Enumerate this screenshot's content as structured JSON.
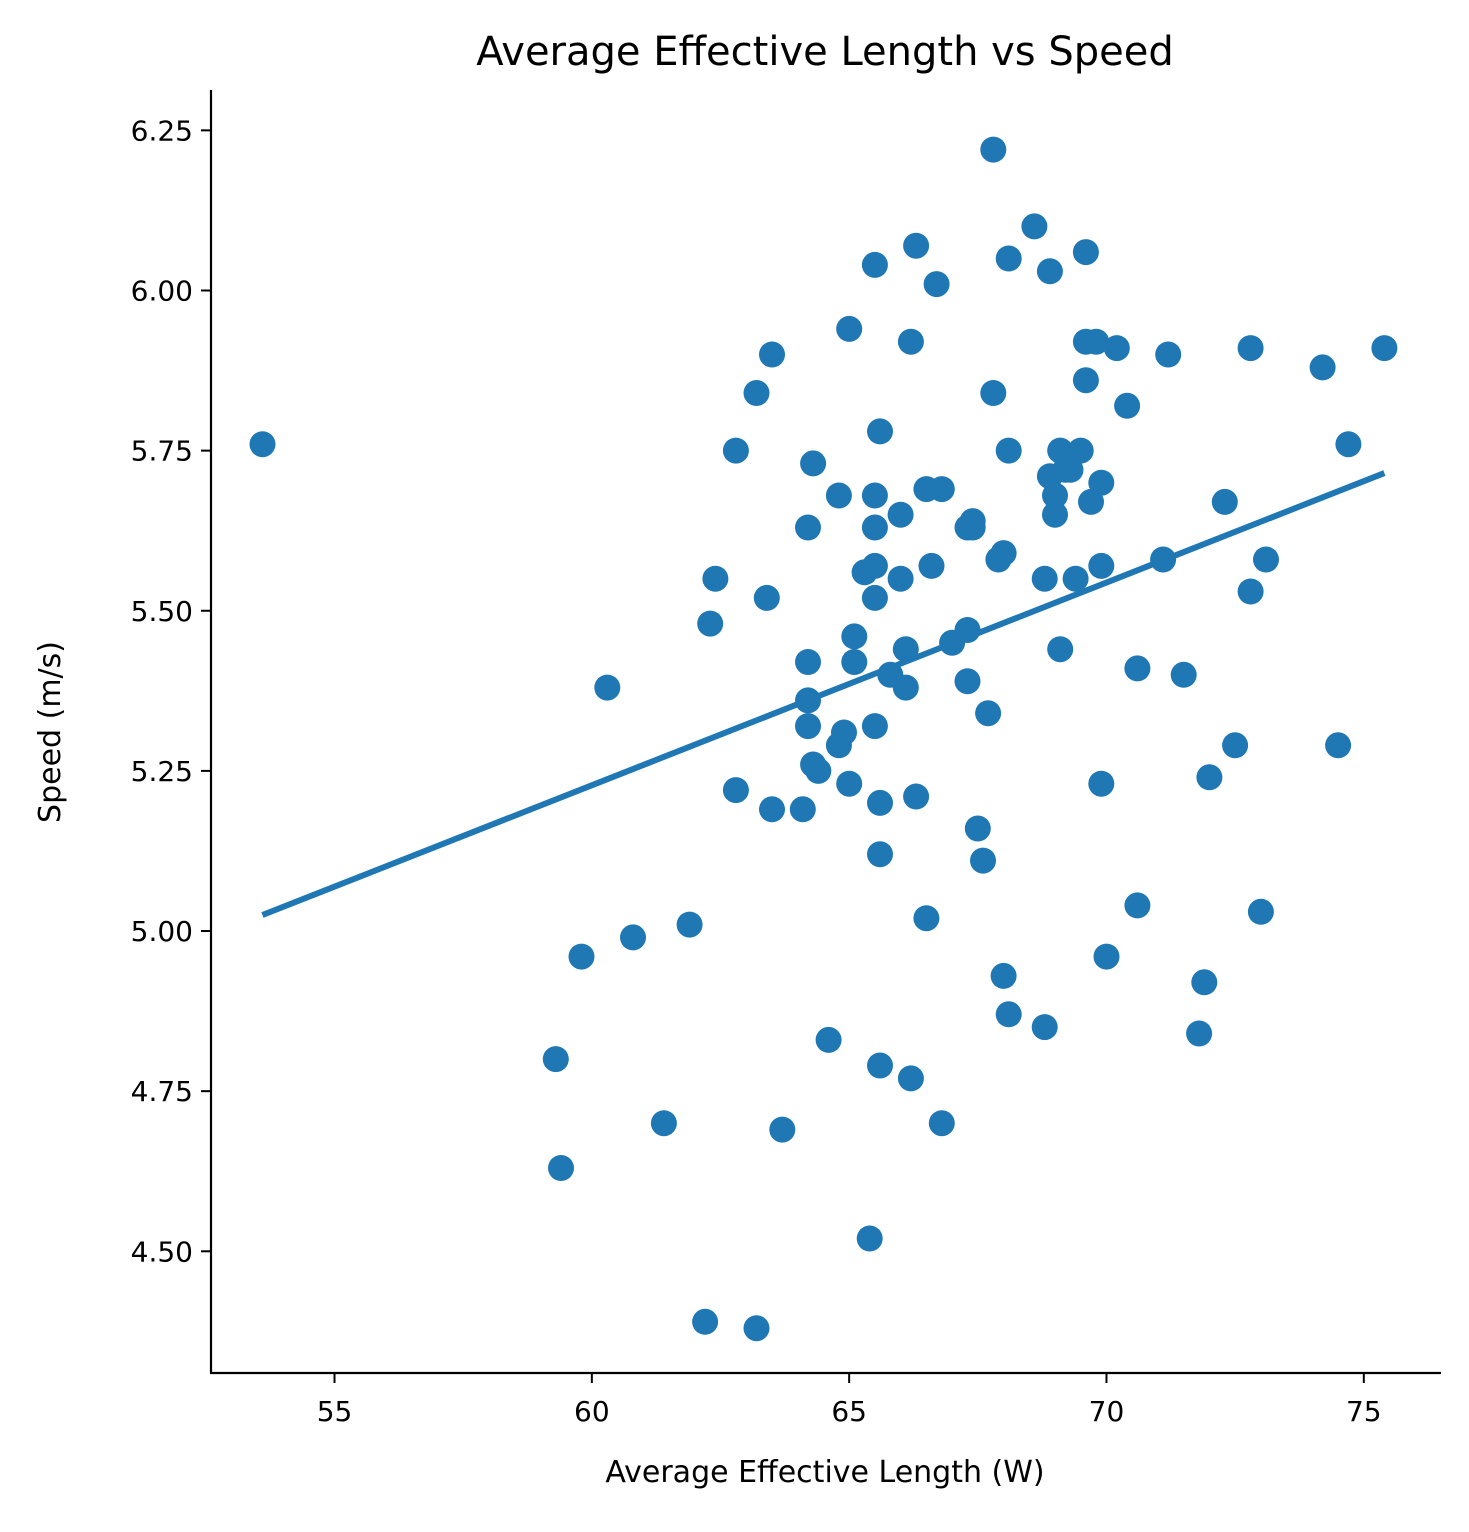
{
  "chart_data": {
    "type": "scatter",
    "title": "Average Effective Length vs Speed",
    "xlabel": "Average Effective Length (W)",
    "ylabel": "Speed (m/s)",
    "xlim": [
      52.6,
      76.5
    ],
    "ylim": [
      4.31,
      6.313
    ],
    "xticks": [
      55,
      60,
      65,
      70,
      75
    ],
    "xtick_labels": [
      "55",
      "60",
      "65",
      "70",
      "75"
    ],
    "yticks": [
      4.5,
      4.75,
      5.0,
      5.25,
      5.5,
      5.75,
      6.0,
      6.25
    ],
    "ytick_labels": [
      "4.50",
      "4.75",
      "5.00",
      "5.25",
      "5.50",
      "5.75",
      "6.00",
      "6.25"
    ],
    "grid": false,
    "color": "#1f77b4",
    "series": [
      {
        "type": "scatter",
        "points": [
          [
            53.6,
            5.76
          ],
          [
            59.3,
            4.8
          ],
          [
            59.4,
            4.63
          ],
          [
            59.8,
            4.96
          ],
          [
            60.3,
            5.38
          ],
          [
            60.8,
            4.99
          ],
          [
            61.4,
            4.7
          ],
          [
            61.9,
            5.01
          ],
          [
            62.2,
            4.39
          ],
          [
            62.3,
            5.48
          ],
          [
            62.4,
            5.55
          ],
          [
            62.8,
            5.75
          ],
          [
            62.8,
            5.22
          ],
          [
            63.2,
            5.84
          ],
          [
            63.2,
            4.38
          ],
          [
            63.4,
            5.52
          ],
          [
            63.5,
            5.9
          ],
          [
            63.5,
            5.19
          ],
          [
            63.7,
            4.69
          ],
          [
            64.1,
            5.19
          ],
          [
            64.2,
            5.63
          ],
          [
            64.2,
            5.42
          ],
          [
            64.2,
            5.36
          ],
          [
            64.2,
            5.32
          ],
          [
            64.3,
            5.73
          ],
          [
            64.3,
            5.26
          ],
          [
            64.4,
            5.25
          ],
          [
            64.6,
            4.83
          ],
          [
            64.8,
            5.68
          ],
          [
            64.8,
            5.29
          ],
          [
            64.9,
            5.31
          ],
          [
            65.0,
            5.94
          ],
          [
            65.0,
            5.23
          ],
          [
            65.1,
            5.46
          ],
          [
            65.1,
            5.42
          ],
          [
            65.3,
            5.56
          ],
          [
            65.4,
            4.52
          ],
          [
            65.5,
            6.04
          ],
          [
            65.5,
            5.68
          ],
          [
            65.5,
            5.63
          ],
          [
            65.5,
            5.57
          ],
          [
            65.5,
            5.52
          ],
          [
            65.5,
            5.32
          ],
          [
            65.6,
            5.78
          ],
          [
            65.6,
            5.2
          ],
          [
            65.6,
            5.12
          ],
          [
            65.6,
            4.79
          ],
          [
            65.8,
            5.4
          ],
          [
            66.0,
            5.65
          ],
          [
            66.0,
            5.55
          ],
          [
            66.1,
            5.38
          ],
          [
            66.1,
            5.44
          ],
          [
            66.2,
            5.92
          ],
          [
            66.2,
            4.77
          ],
          [
            66.3,
            5.21
          ],
          [
            66.3,
            6.07
          ],
          [
            66.5,
            5.69
          ],
          [
            66.5,
            5.02
          ],
          [
            66.6,
            5.57
          ],
          [
            66.7,
            6.01
          ],
          [
            66.8,
            5.69
          ],
          [
            66.8,
            4.7
          ],
          [
            67.0,
            5.45
          ],
          [
            67.3,
            5.63
          ],
          [
            67.3,
            5.47
          ],
          [
            67.3,
            5.39
          ],
          [
            67.4,
            5.64
          ],
          [
            67.4,
            5.63
          ],
          [
            67.5,
            5.16
          ],
          [
            67.6,
            5.11
          ],
          [
            67.7,
            5.34
          ],
          [
            67.8,
            6.22
          ],
          [
            67.8,
            5.84
          ],
          [
            67.9,
            5.58
          ],
          [
            68.0,
            5.59
          ],
          [
            68.0,
            4.93
          ],
          [
            68.1,
            6.05
          ],
          [
            68.1,
            5.75
          ],
          [
            68.1,
            4.87
          ],
          [
            68.6,
            6.1
          ],
          [
            68.8,
            5.55
          ],
          [
            68.8,
            4.85
          ],
          [
            68.9,
            6.03
          ],
          [
            68.9,
            5.71
          ],
          [
            69.0,
            5.68
          ],
          [
            69.0,
            5.65
          ],
          [
            69.1,
            5.75
          ],
          [
            69.1,
            5.44
          ],
          [
            69.2,
            5.72
          ],
          [
            69.3,
            5.72
          ],
          [
            69.4,
            5.55
          ],
          [
            69.5,
            5.75
          ],
          [
            69.6,
            5.92
          ],
          [
            69.6,
            5.86
          ],
          [
            69.6,
            6.06
          ],
          [
            69.7,
            5.67
          ],
          [
            69.8,
            5.92
          ],
          [
            69.9,
            5.7
          ],
          [
            69.9,
            5.57
          ],
          [
            69.9,
            5.23
          ],
          [
            70.0,
            4.96
          ],
          [
            70.2,
            5.91
          ],
          [
            70.4,
            5.82
          ],
          [
            70.6,
            5.41
          ],
          [
            70.6,
            5.04
          ],
          [
            71.1,
            5.58
          ],
          [
            71.2,
            5.9
          ],
          [
            71.5,
            5.4
          ],
          [
            71.8,
            4.84
          ],
          [
            71.9,
            4.92
          ],
          [
            72.0,
            5.24
          ],
          [
            72.3,
            5.67
          ],
          [
            72.5,
            5.29
          ],
          [
            72.8,
            5.91
          ],
          [
            72.8,
            5.53
          ],
          [
            73.0,
            5.03
          ],
          [
            73.1,
            5.58
          ],
          [
            74.2,
            5.88
          ],
          [
            74.5,
            5.29
          ],
          [
            74.7,
            5.76
          ],
          [
            75.4,
            5.91
          ]
        ]
      },
      {
        "type": "line",
        "points": [
          [
            53.6,
            5.025
          ],
          [
            75.4,
            5.715
          ]
        ]
      }
    ]
  }
}
